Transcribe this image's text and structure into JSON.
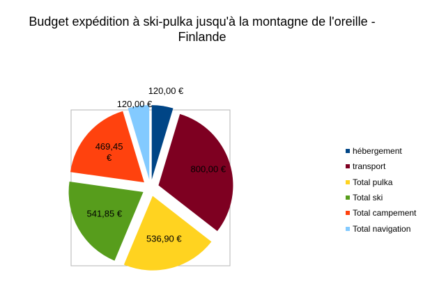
{
  "chart_data": {
    "type": "pie",
    "title": "Budget expédition à ski-pulka jusqu'à la montagne de l'oreille - Finlande",
    "title_lines": [
      "Budget expédition à ski-pulka jusqu'à la montagne de l'oreille -",
      "Finlande"
    ],
    "categories": [
      "hébergement",
      "transport",
      "Total pulka",
      "Total ski",
      "Total campement",
      "Total navigation"
    ],
    "values": [
      120.0,
      800.0,
      536.9,
      541.85,
      469.45,
      120.0
    ],
    "data_labels": [
      "120,00 €",
      "800,00 €",
      "536,90 €",
      "541,85 €",
      "469,45 €",
      "120,00 €"
    ],
    "colors": [
      "#004586",
      "#7e0021",
      "#ffd320",
      "#579d1c",
      "#ff420e",
      "#83caff"
    ],
    "exploded": true,
    "legend_position": "right"
  }
}
